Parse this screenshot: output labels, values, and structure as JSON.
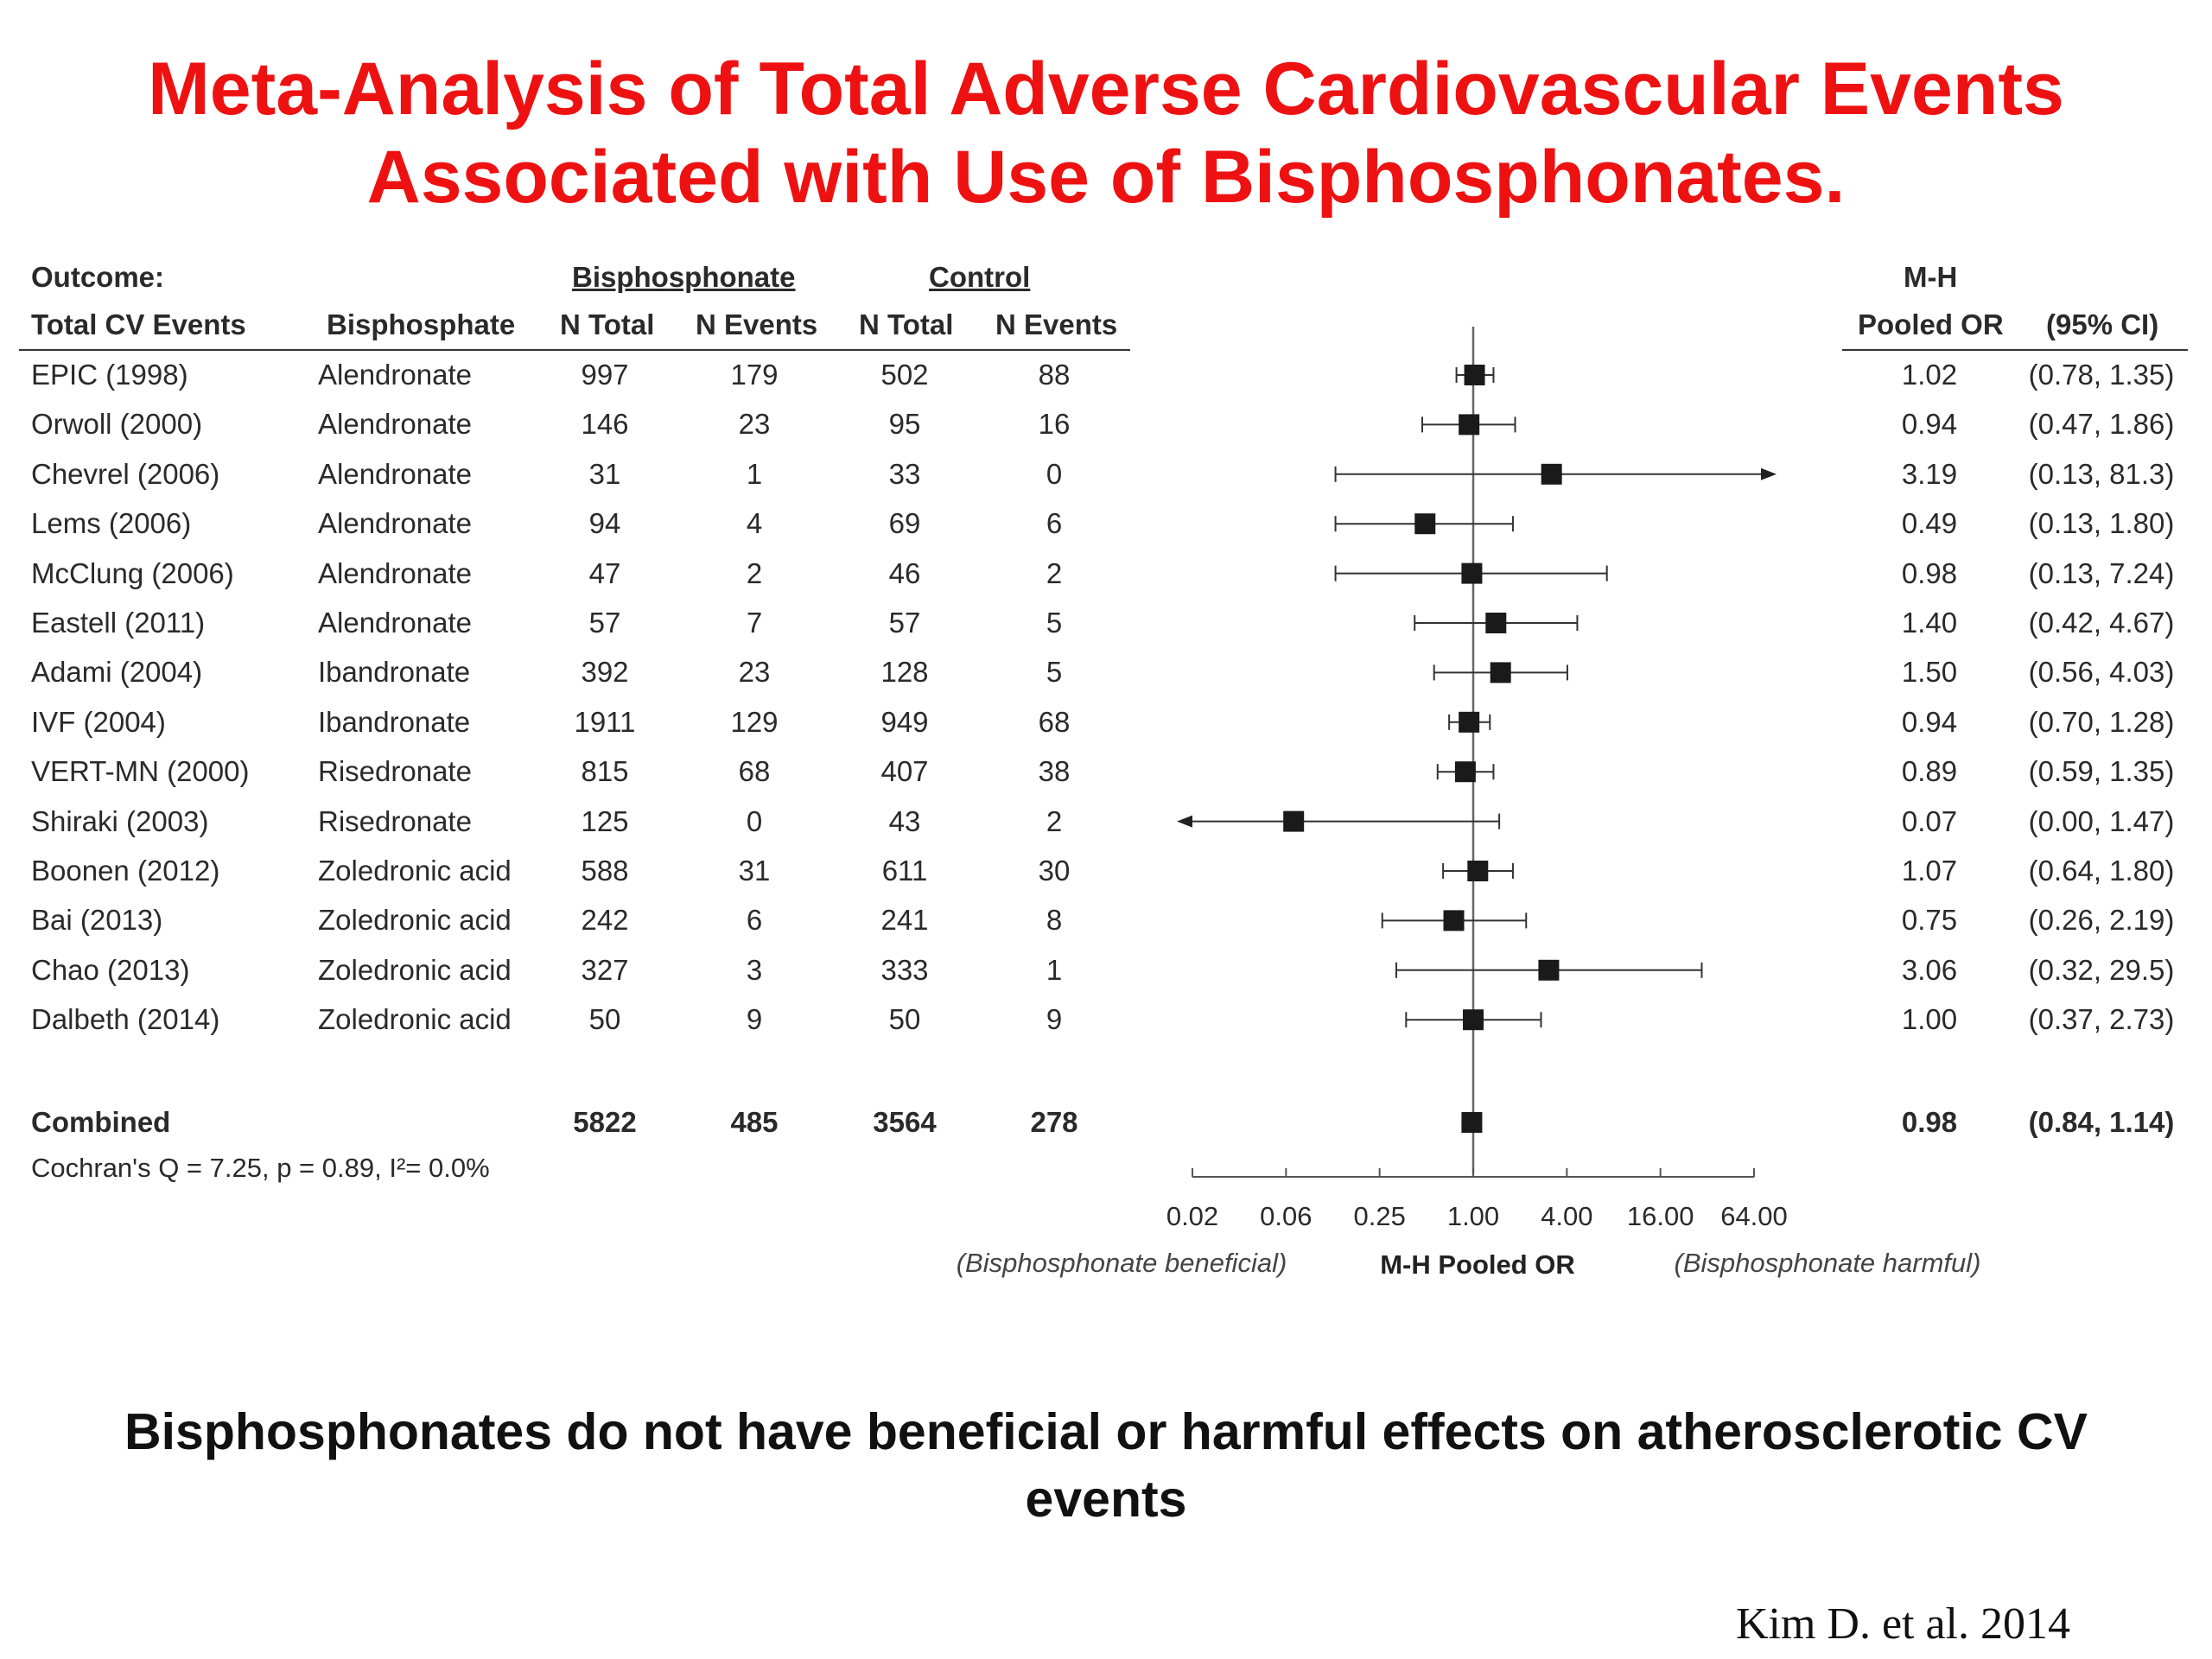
{
  "title": {
    "line1": "Meta-Analysis of Total Adverse Cardiovascular Events",
    "line2": "Associated with Use of Bisphosphonates."
  },
  "table": {
    "headers": {
      "outcome": "Outcome:",
      "outcome_sub": "Total CV Events",
      "drug": "Bisphosphate",
      "bisphosphonate_group": "Bisphosphonate",
      "control_group": "Control",
      "n_total": "N Total",
      "n_events": "N Events",
      "mh": "M-H",
      "pooled_or": "Pooled OR",
      "ci": "(95% CI)"
    },
    "rows": [
      {
        "study": "EPIC (1998)",
        "drug": "Alendronate",
        "bis_total": "997",
        "bis_events": "179",
        "ctl_total": "502",
        "ctl_events": "88",
        "or": "1.02",
        "ci": "(0.78, 1.35)"
      },
      {
        "study": "Orwoll (2000)",
        "drug": "Alendronate",
        "bis_total": "146",
        "bis_events": "23",
        "ctl_total": "95",
        "ctl_events": "16",
        "or": "0.94",
        "ci": "(0.47, 1.86)"
      },
      {
        "study": "Chevrel (2006)",
        "drug": "Alendronate",
        "bis_total": "31",
        "bis_events": "1",
        "ctl_total": "33",
        "ctl_events": "0",
        "or": "3.19",
        "ci": "(0.13, 81.3)"
      },
      {
        "study": "Lems (2006)",
        "drug": "Alendronate",
        "bis_total": "94",
        "bis_events": "4",
        "ctl_total": "69",
        "ctl_events": "6",
        "or": "0.49",
        "ci": "(0.13, 1.80)"
      },
      {
        "study": "McClung (2006)",
        "drug": "Alendronate",
        "bis_total": "47",
        "bis_events": "2",
        "ctl_total": "46",
        "ctl_events": "2",
        "or": "0.98",
        "ci": "(0.13, 7.24)"
      },
      {
        "study": "Eastell (2011)",
        "drug": "Alendronate",
        "bis_total": "57",
        "bis_events": "7",
        "ctl_total": "57",
        "ctl_events": "5",
        "or": "1.40",
        "ci": "(0.42, 4.67)"
      },
      {
        "study": "Adami (2004)",
        "drug": "Ibandronate",
        "bis_total": "392",
        "bis_events": "23",
        "ctl_total": "128",
        "ctl_events": "5",
        "or": "1.50",
        "ci": "(0.56, 4.03)"
      },
      {
        "study": "IVF (2004)",
        "drug": "Ibandronate",
        "bis_total": "1911",
        "bis_events": "129",
        "ctl_total": "949",
        "ctl_events": "68",
        "or": "0.94",
        "ci": "(0.70, 1.28)"
      },
      {
        "study": "VERT-MN (2000)",
        "drug": "Risedronate",
        "bis_total": "815",
        "bis_events": "68",
        "ctl_total": "407",
        "ctl_events": "38",
        "or": "0.89",
        "ci": "(0.59, 1.35)"
      },
      {
        "study": "Shiraki (2003)",
        "drug": "Risedronate",
        "bis_total": "125",
        "bis_events": "0",
        "ctl_total": "43",
        "ctl_events": "2",
        "or": "0.07",
        "ci": "(0.00, 1.47)"
      },
      {
        "study": "Boonen (2012)",
        "drug": "Zoledronic acid",
        "bis_total": "588",
        "bis_events": "31",
        "ctl_total": "611",
        "ctl_events": "30",
        "or": "1.07",
        "ci": "(0.64, 1.80)"
      },
      {
        "study": "Bai (2013)",
        "drug": "Zoledronic acid",
        "bis_total": "242",
        "bis_events": "6",
        "ctl_total": "241",
        "ctl_events": "8",
        "or": "0.75",
        "ci": "(0.26, 2.19)"
      },
      {
        "study": "Chao (2013)",
        "drug": "Zoledronic acid",
        "bis_total": "327",
        "bis_events": "3",
        "ctl_total": "333",
        "ctl_events": "1",
        "or": "3.06",
        "ci": "(0.32, 29.5)"
      },
      {
        "study": "Dalbeth (2014)",
        "drug": "Zoledronic acid",
        "bis_total": "50",
        "bis_events": "9",
        "ctl_total": "50",
        "ctl_events": "9",
        "or": "1.00",
        "ci": "(0.37, 2.73)"
      }
    ],
    "combined": {
      "label": "Combined",
      "bis_total": "5822",
      "bis_events": "485",
      "ctl_total": "3564",
      "ctl_events": "278",
      "or": "0.98",
      "ci": "(0.84, 1.14)"
    },
    "heterogeneity": "Cochran's Q = 7.25, p = 0.89, I²= 0.0%"
  },
  "chart_data": {
    "type": "forest",
    "x_scale": "log2",
    "xlim": [
      0.02,
      64
    ],
    "x_tick_labels": [
      "0.02",
      "0.06",
      "0.25",
      "1.00",
      "4.00",
      "16.00",
      "64.00"
    ],
    "x_tick_values": [
      0.015625,
      0.0625,
      0.25,
      1,
      4,
      16,
      64
    ],
    "xlabel": "M-H Pooled OR",
    "left_annotation": "(Bisphosphonate beneficial)",
    "right_annotation": "(Bisphosphonate harmful)",
    "reference_line": 1,
    "studies": [
      {
        "name": "EPIC (1998)",
        "or": 1.02,
        "lo": 0.78,
        "hi": 1.35
      },
      {
        "name": "Orwoll (2000)",
        "or": 0.94,
        "lo": 0.47,
        "hi": 1.86
      },
      {
        "name": "Chevrel (2006)",
        "or": 3.19,
        "lo": 0.13,
        "hi": 81.3,
        "hi_clipped": true
      },
      {
        "name": "Lems (2006)",
        "or": 0.49,
        "lo": 0.13,
        "hi": 1.8
      },
      {
        "name": "McClung (2006)",
        "or": 0.98,
        "lo": 0.13,
        "hi": 7.24
      },
      {
        "name": "Eastell (2011)",
        "or": 1.4,
        "lo": 0.42,
        "hi": 4.67
      },
      {
        "name": "Adami (2004)",
        "or": 1.5,
        "lo": 0.56,
        "hi": 4.03
      },
      {
        "name": "IVF (2004)",
        "or": 0.94,
        "lo": 0.7,
        "hi": 1.28
      },
      {
        "name": "VERT-MN (2000)",
        "or": 0.89,
        "lo": 0.59,
        "hi": 1.35
      },
      {
        "name": "Shiraki (2003)",
        "or": 0.07,
        "lo": 0.0,
        "hi": 1.47,
        "lo_clipped": true
      },
      {
        "name": "Boonen (2012)",
        "or": 1.07,
        "lo": 0.64,
        "hi": 1.8
      },
      {
        "name": "Bai (2013)",
        "or": 0.75,
        "lo": 0.26,
        "hi": 2.19
      },
      {
        "name": "Chao (2013)",
        "or": 3.06,
        "lo": 0.32,
        "hi": 29.5
      },
      {
        "name": "Dalbeth (2014)",
        "or": 1.0,
        "lo": 0.37,
        "hi": 2.73
      }
    ],
    "combined": {
      "name": "Combined",
      "or": 0.98,
      "lo": 0.84,
      "hi": 1.14
    }
  },
  "conclusion": {
    "line1": "Bisphosphonates do not have beneficial or harmful effects on atherosclerotic CV",
    "line2": "events"
  },
  "citation": "Kim D. et al. 2014"
}
